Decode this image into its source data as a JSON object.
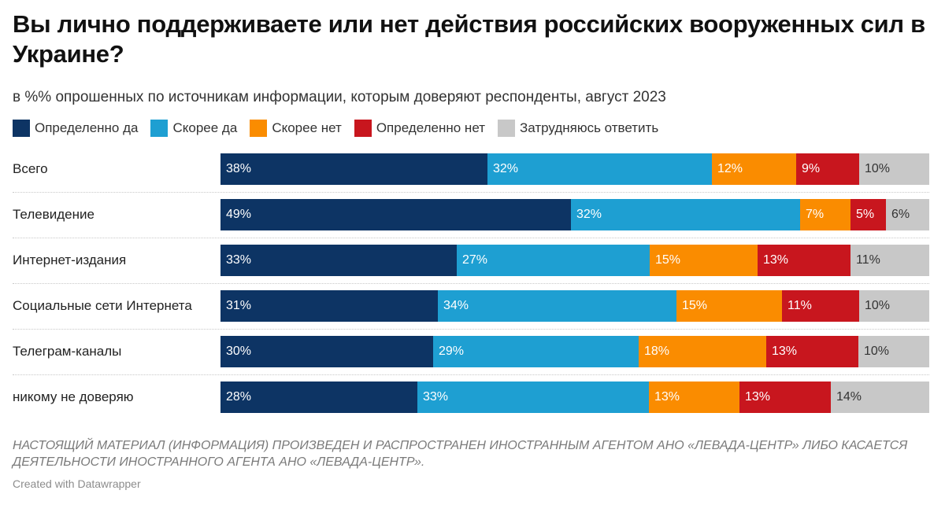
{
  "title": "Вы лично поддерживаете или нет действия российских вооруженных сил в Украине?",
  "subtitle": "в %% опрошенных по источникам информации, которым доверяют респонденты, август 2023",
  "footer_note": "НАСТОЯЩИЙ МАТЕРИАЛ (ИНФОРМАЦИЯ) ПРОИЗВЕДЕН И РАСПРОСТРАНЕН ИНОСТРАННЫМ АГЕНТОМ АНО «ЛЕВАДА-ЦЕНТР» ЛИБО КАСАЕТСЯ ДЕЯТЕЛЬНОСТИ ИНОСТРАННОГО АГЕНТА АНО «ЛЕВАДА-ЦЕНТР».",
  "credit": "Created with Datawrapper",
  "chart_data": {
    "type": "bar",
    "orientation": "horizontal",
    "stacked": true,
    "categories": [
      "Всего",
      "Телевидение",
      "Интернет-издания",
      "Социальные сети Интернета",
      "Телеграм-каналы",
      "никому не доверяю"
    ],
    "series": [
      {
        "name": "Определенно да",
        "color": "#0d3464",
        "label_color": "#ffffff",
        "values": [
          38,
          49,
          33,
          31,
          30,
          28
        ]
      },
      {
        "name": "Скорее да",
        "color": "#1e9fd2",
        "label_color": "#ffffff",
        "values": [
          32,
          32,
          27,
          34,
          29,
          33
        ]
      },
      {
        "name": "Скорее нет",
        "color": "#fa8c00",
        "label_color": "#ffffff",
        "values": [
          12,
          7,
          15,
          15,
          18,
          13
        ]
      },
      {
        "name": "Определенно нет",
        "color": "#c8161e",
        "label_color": "#ffffff",
        "values": [
          9,
          5,
          13,
          11,
          13,
          13
        ]
      },
      {
        "name": "Затрудняюсь ответить",
        "color": "#c8c8c8",
        "label_color": "#333333",
        "values": [
          10,
          6,
          11,
          10,
          10,
          14
        ]
      }
    ],
    "value_suffix": "%",
    "legend_position": "top-left",
    "grid": false
  }
}
